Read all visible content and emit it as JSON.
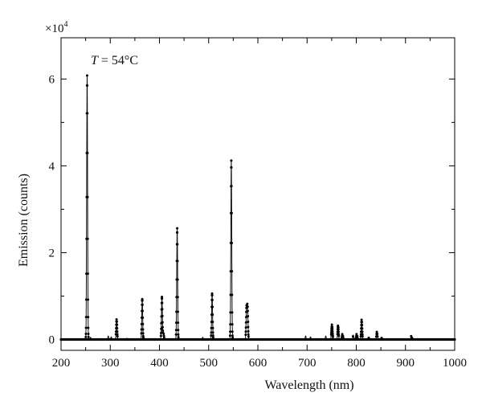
{
  "chart_data": {
    "type": "line",
    "title": "",
    "annotation": {
      "var": "T",
      "rest": " = 54°C"
    },
    "xlabel": "Wavelength (nm)",
    "ylabel": "Emission (counts)",
    "y_multiplier": {
      "base": "×10",
      "exp": "4"
    },
    "xlim": [
      200,
      1000
    ],
    "ylim": [
      -0.25,
      6.95
    ],
    "xticks": [
      200,
      300,
      400,
      500,
      600,
      700,
      800,
      900,
      1000
    ],
    "yticks": [
      0,
      2,
      4,
      6
    ],
    "grid": false,
    "colors": {
      "line": "#111111",
      "marker": "#000000",
      "axis": "#000000"
    },
    "series": [
      {
        "marker": "dot",
        "peaks": [
          {
            "x": 253,
            "y": 6.08
          },
          {
            "x": 260,
            "y": 0.05
          },
          {
            "x": 296,
            "y": 0.08
          },
          {
            "x": 302,
            "y": 0.06
          },
          {
            "x": 313,
            "y": 0.48
          },
          {
            "x": 334,
            "y": 0.03
          },
          {
            "x": 365,
            "y": 0.93
          },
          {
            "x": 405,
            "y": 0.98
          },
          {
            "x": 408,
            "y": 0.15
          },
          {
            "x": 436,
            "y": 2.56
          },
          {
            "x": 488,
            "y": 0.05
          },
          {
            "x": 507,
            "y": 1.06
          },
          {
            "x": 546,
            "y": 4.12
          },
          {
            "x": 577,
            "y": 0.72
          },
          {
            "x": 579,
            "y": 0.75
          },
          {
            "x": 697,
            "y": 0.08
          },
          {
            "x": 707,
            "y": 0.06
          },
          {
            "x": 738,
            "y": 0.08
          },
          {
            "x": 750,
            "y": 0.17
          },
          {
            "x": 751,
            "y": 0.23
          },
          {
            "x": 763,
            "y": 0.33
          },
          {
            "x": 772,
            "y": 0.14
          },
          {
            "x": 794,
            "y": 0.1
          },
          {
            "x": 801,
            "y": 0.14
          },
          {
            "x": 811,
            "y": 0.47
          },
          {
            "x": 826,
            "y": 0.06
          },
          {
            "x": 842,
            "y": 0.18
          },
          {
            "x": 852,
            "y": 0.04
          },
          {
            "x": 912,
            "y": 0.09
          }
        ]
      }
    ]
  }
}
